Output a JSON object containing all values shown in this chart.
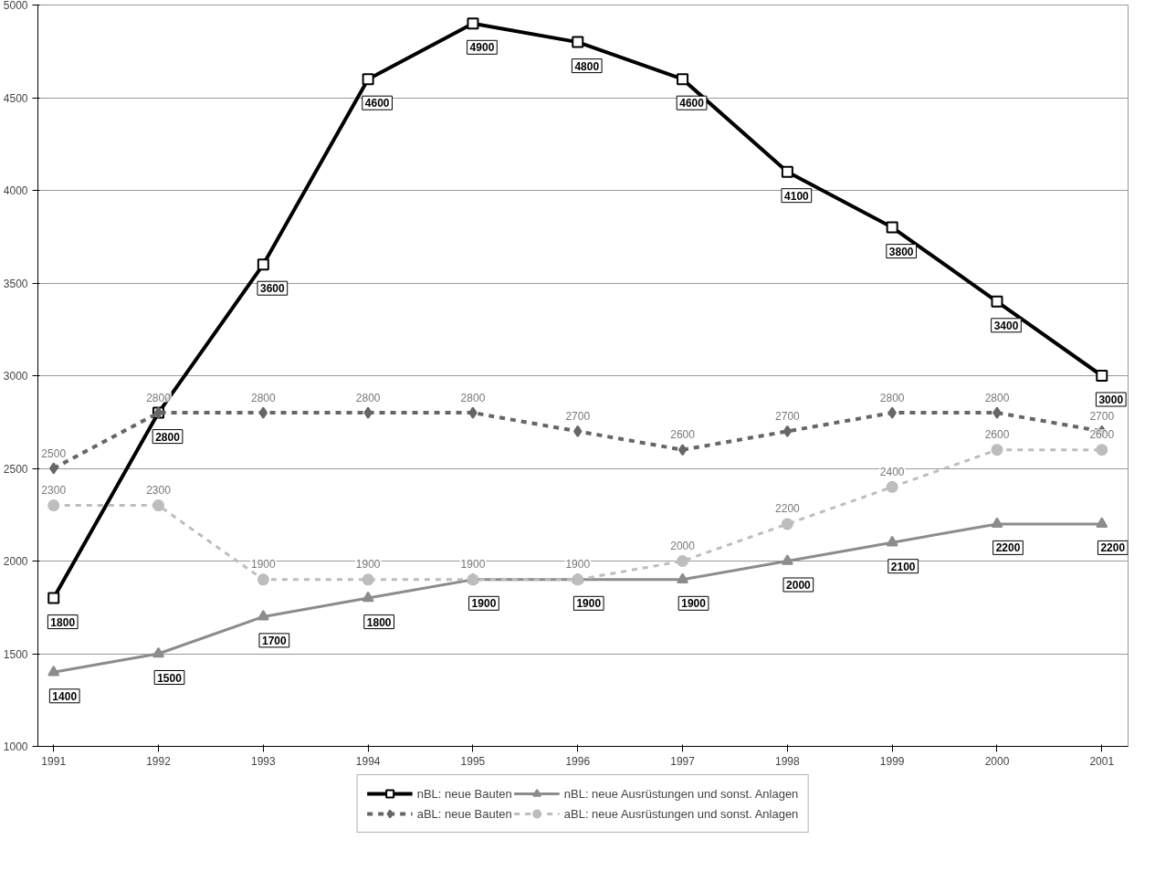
{
  "chart_data": {
    "type": "line",
    "categories": [
      "1991",
      "1992",
      "1993",
      "1994",
      "1995",
      "1996",
      "1997",
      "1998",
      "1999",
      "2000",
      "2001"
    ],
    "series": [
      {
        "name": "nBL: neue Bauten",
        "color": "#000000",
        "marker": "square",
        "line_style": "solid",
        "values": [
          1800,
          2800,
          3600,
          4600,
          4900,
          4800,
          4600,
          4100,
          3800,
          3400,
          3000
        ]
      },
      {
        "name": "aBL: neue Bauten",
        "color": "#666666",
        "marker": "diamond",
        "line_style": "dashed",
        "values": [
          2500,
          2800,
          2800,
          2800,
          2800,
          2700,
          2600,
          2700,
          2800,
          2800,
          2700
        ]
      },
      {
        "name": "nBL: neue Ausrüstungen und sonst. Anlagen",
        "color": "#8c8c8c",
        "marker": "triangle",
        "line_style": "solid",
        "values": [
          1400,
          1500,
          1700,
          1800,
          1900,
          1900,
          1900,
          2000,
          2100,
          2200,
          2200
        ]
      },
      {
        "name": "aBL: neue Ausrüstungen und sonst. Anlagen",
        "color": "#bdbdbd",
        "marker": "circle",
        "line_style": "dashed",
        "values": [
          2300,
          2300,
          1900,
          1900,
          1900,
          1900,
          2000,
          2200,
          2400,
          2600,
          2600
        ]
      }
    ],
    "ylim": [
      1000,
      5000
    ],
    "yticks": [
      1000,
      1500,
      2000,
      2500,
      3000,
      3500,
      4000,
      4500,
      5000
    ],
    "grid": "y",
    "legend": "bottom",
    "data_labels": true
  }
}
